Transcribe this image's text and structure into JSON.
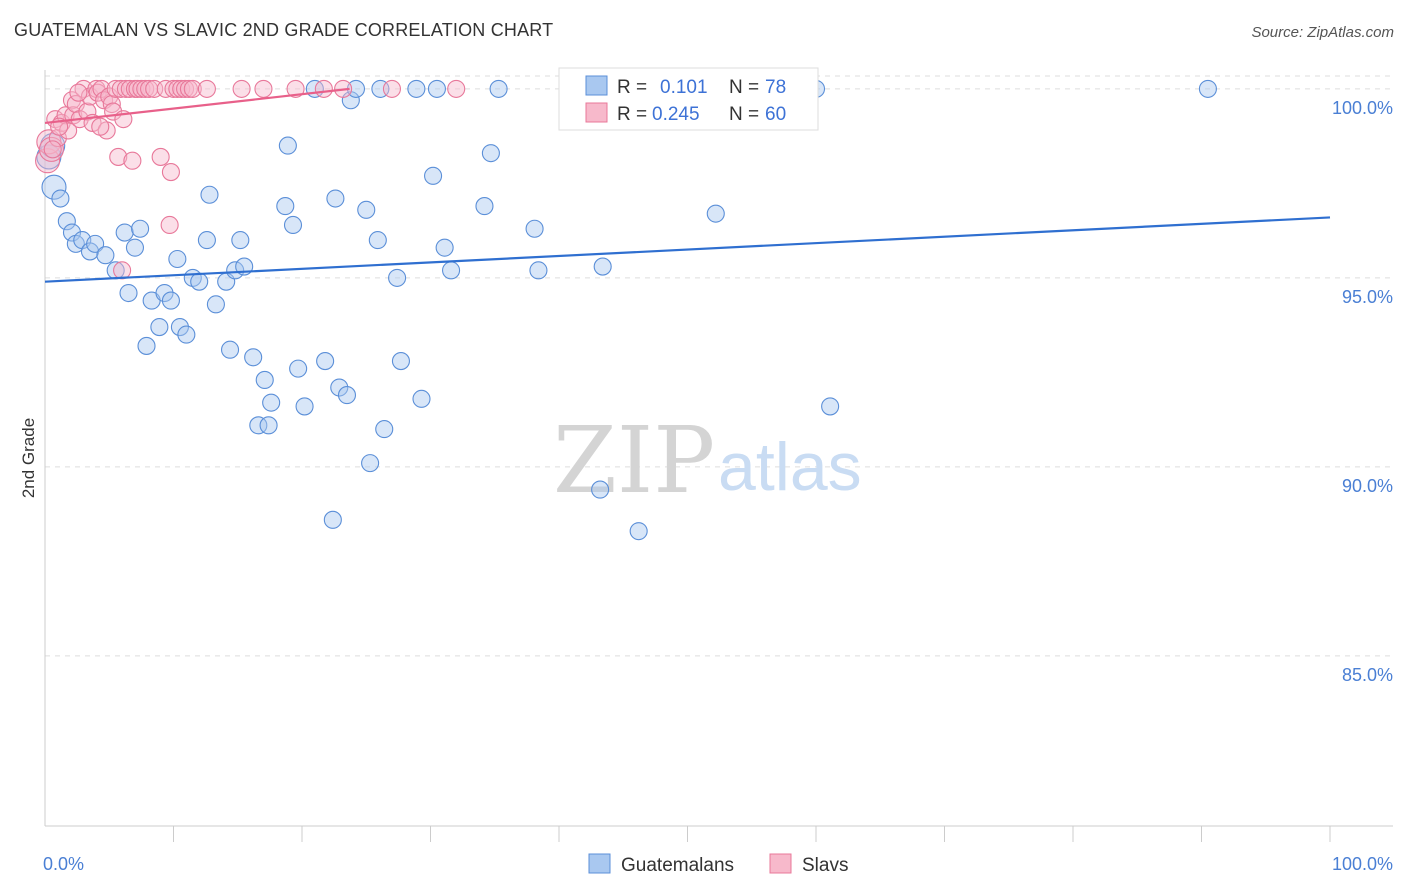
{
  "title": "GUATEMALAN VS SLAVIC 2ND GRADE CORRELATION CHART",
  "source": "Source: ZipAtlas.com",
  "watermark": {
    "zip": "ZIP",
    "atlas": "atlas"
  },
  "colors": {
    "blue_fill": "#a9c8f0",
    "blue_stroke": "#5b8fd8",
    "blue_line": "#2f6fd0",
    "pink_fill": "#f7b9cb",
    "pink_stroke": "#e8789a",
    "pink_line": "#e8608a",
    "tick_text": "#4a7fd4",
    "grid": "#dddddd"
  },
  "legend_top": [
    {
      "r_label": "R =",
      "r_value": "0.101",
      "n_label": "N =",
      "n_value": "78"
    },
    {
      "r_label": "R =",
      "r_value": "0.245",
      "n_label": "N =",
      "n_value": "60"
    }
  ],
  "chart_data": {
    "type": "scatter",
    "title": "GUATEMALAN VS SLAVIC 2ND GRADE CORRELATION CHART",
    "xlabel": "",
    "ylabel": "2nd Grade",
    "xlim": [
      0,
      100
    ],
    "ylim": [
      80.5,
      100.5
    ],
    "x_tick_labels": [
      "0.0%",
      "100.0%"
    ],
    "y_ticks": [
      100,
      95,
      90,
      85
    ],
    "y_tick_labels": [
      "100.0%",
      "95.0%",
      "90.0%",
      "85.0%"
    ],
    "grid": true,
    "legend_position": "bottom-center",
    "series": [
      {
        "name": "Guatemalans",
        "r": 0.101,
        "n": 78,
        "trend": [
          [
            0,
            94.9
          ],
          [
            100,
            96.6
          ]
        ],
        "points": [
          [
            0.3,
            98.2
          ],
          [
            0.6,
            98.5
          ],
          [
            0.7,
            97.4
          ],
          [
            1.2,
            97.1
          ],
          [
            1.7,
            96.5
          ],
          [
            2.1,
            96.2
          ],
          [
            2.4,
            95.9
          ],
          [
            2.9,
            96.0
          ],
          [
            3.5,
            95.7
          ],
          [
            3.9,
            95.9
          ],
          [
            4.7,
            95.6
          ],
          [
            5.5,
            95.2
          ],
          [
            6.2,
            96.2
          ],
          [
            6.5,
            94.6
          ],
          [
            7.0,
            95.8
          ],
          [
            7.4,
            96.3
          ],
          [
            7.9,
            93.2
          ],
          [
            8.3,
            94.4
          ],
          [
            8.9,
            93.7
          ],
          [
            9.3,
            94.6
          ],
          [
            9.8,
            94.4
          ],
          [
            10.3,
            95.5
          ],
          [
            10.5,
            93.7
          ],
          [
            11.0,
            93.5
          ],
          [
            11.5,
            95.0
          ],
          [
            12.0,
            94.9
          ],
          [
            12.8,
            97.2
          ],
          [
            12.6,
            96.0
          ],
          [
            13.3,
            94.3
          ],
          [
            14.1,
            94.9
          ],
          [
            14.4,
            93.1
          ],
          [
            14.8,
            95.2
          ],
          [
            15.2,
            96.0
          ],
          [
            15.5,
            95.3
          ],
          [
            16.2,
            92.9
          ],
          [
            16.6,
            91.1
          ],
          [
            17.1,
            92.3
          ],
          [
            17.4,
            91.1
          ],
          [
            17.6,
            91.7
          ],
          [
            18.7,
            96.9
          ],
          [
            18.9,
            98.5
          ],
          [
            19.3,
            96.4
          ],
          [
            19.7,
            92.6
          ],
          [
            20.2,
            91.6
          ],
          [
            21.0,
            100.0
          ],
          [
            21.8,
            92.8
          ],
          [
            22.4,
            88.6
          ],
          [
            22.6,
            97.1
          ],
          [
            22.9,
            92.1
          ],
          [
            23.5,
            91.9
          ],
          [
            23.8,
            99.7
          ],
          [
            24.2,
            100.0
          ],
          [
            25.0,
            96.8
          ],
          [
            25.3,
            90.1
          ],
          [
            25.9,
            96.0
          ],
          [
            26.1,
            100.0
          ],
          [
            26.4,
            91.0
          ],
          [
            27.4,
            95.0
          ],
          [
            27.7,
            92.8
          ],
          [
            28.9,
            100.0
          ],
          [
            29.3,
            91.8
          ],
          [
            30.2,
            97.7
          ],
          [
            30.5,
            100.0
          ],
          [
            31.1,
            95.8
          ],
          [
            31.6,
            95.2
          ],
          [
            34.2,
            96.9
          ],
          [
            34.7,
            98.3
          ],
          [
            35.3,
            100.0
          ],
          [
            38.1,
            96.3
          ],
          [
            38.4,
            95.2
          ],
          [
            43.2,
            89.4
          ],
          [
            43.4,
            95.3
          ],
          [
            46.2,
            88.3
          ],
          [
            52.2,
            96.7
          ],
          [
            59.0,
            100.0
          ],
          [
            60.0,
            100.0
          ],
          [
            61.1,
            91.6
          ],
          [
            90.5,
            100.0
          ]
        ]
      },
      {
        "name": "Slavs",
        "r": 0.245,
        "n": 60,
        "trend": [
          [
            0,
            99.1
          ],
          [
            23.7,
            100.0
          ]
        ],
        "points": [
          [
            0.2,
            98.1
          ],
          [
            0.3,
            98.6
          ],
          [
            0.5,
            98.4
          ],
          [
            0.8,
            99.2
          ],
          [
            1.0,
            98.7
          ],
          [
            1.3,
            99.1
          ],
          [
            1.6,
            99.3
          ],
          [
            1.8,
            98.9
          ],
          [
            2.1,
            99.7
          ],
          [
            2.2,
            99.3
          ],
          [
            2.4,
            99.6
          ],
          [
            2.7,
            99.2
          ],
          [
            3.0,
            100.0
          ],
          [
            3.3,
            99.4
          ],
          [
            3.5,
            99.8
          ],
          [
            3.7,
            99.1
          ],
          [
            4.0,
            100.0
          ],
          [
            4.1,
            99.9
          ],
          [
            4.4,
            100.0
          ],
          [
            4.6,
            99.7
          ],
          [
            4.8,
            98.9
          ],
          [
            5.0,
            99.8
          ],
          [
            5.2,
            99.6
          ],
          [
            5.3,
            99.4
          ],
          [
            5.5,
            100.0
          ],
          [
            5.7,
            98.2
          ],
          [
            5.9,
            100.0
          ],
          [
            6.1,
            99.2
          ],
          [
            6.3,
            100.0
          ],
          [
            6.6,
            100.0
          ],
          [
            6.8,
            98.1
          ],
          [
            7.0,
            100.0
          ],
          [
            7.2,
            100.0
          ],
          [
            7.5,
            100.0
          ],
          [
            7.8,
            100.0
          ],
          [
            8.1,
            100.0
          ],
          [
            8.5,
            100.0
          ],
          [
            9.0,
            98.2
          ],
          [
            9.4,
            100.0
          ],
          [
            9.7,
            96.4
          ],
          [
            9.8,
            97.8
          ],
          [
            10.0,
            100.0
          ],
          [
            10.3,
            100.0
          ],
          [
            10.6,
            100.0
          ],
          [
            10.9,
            100.0
          ],
          [
            11.2,
            100.0
          ],
          [
            11.5,
            100.0
          ],
          [
            12.6,
            100.0
          ],
          [
            15.3,
            100.0
          ],
          [
            17.0,
            100.0
          ],
          [
            19.5,
            100.0
          ],
          [
            21.7,
            100.0
          ],
          [
            23.2,
            100.0
          ],
          [
            27.0,
            100.0
          ],
          [
            32.0,
            100.0
          ],
          [
            2.6,
            99.9
          ],
          [
            4.3,
            99.0
          ],
          [
            6.0,
            95.2
          ],
          [
            1.1,
            99.0
          ],
          [
            0.6,
            98.4
          ]
        ]
      }
    ]
  }
}
